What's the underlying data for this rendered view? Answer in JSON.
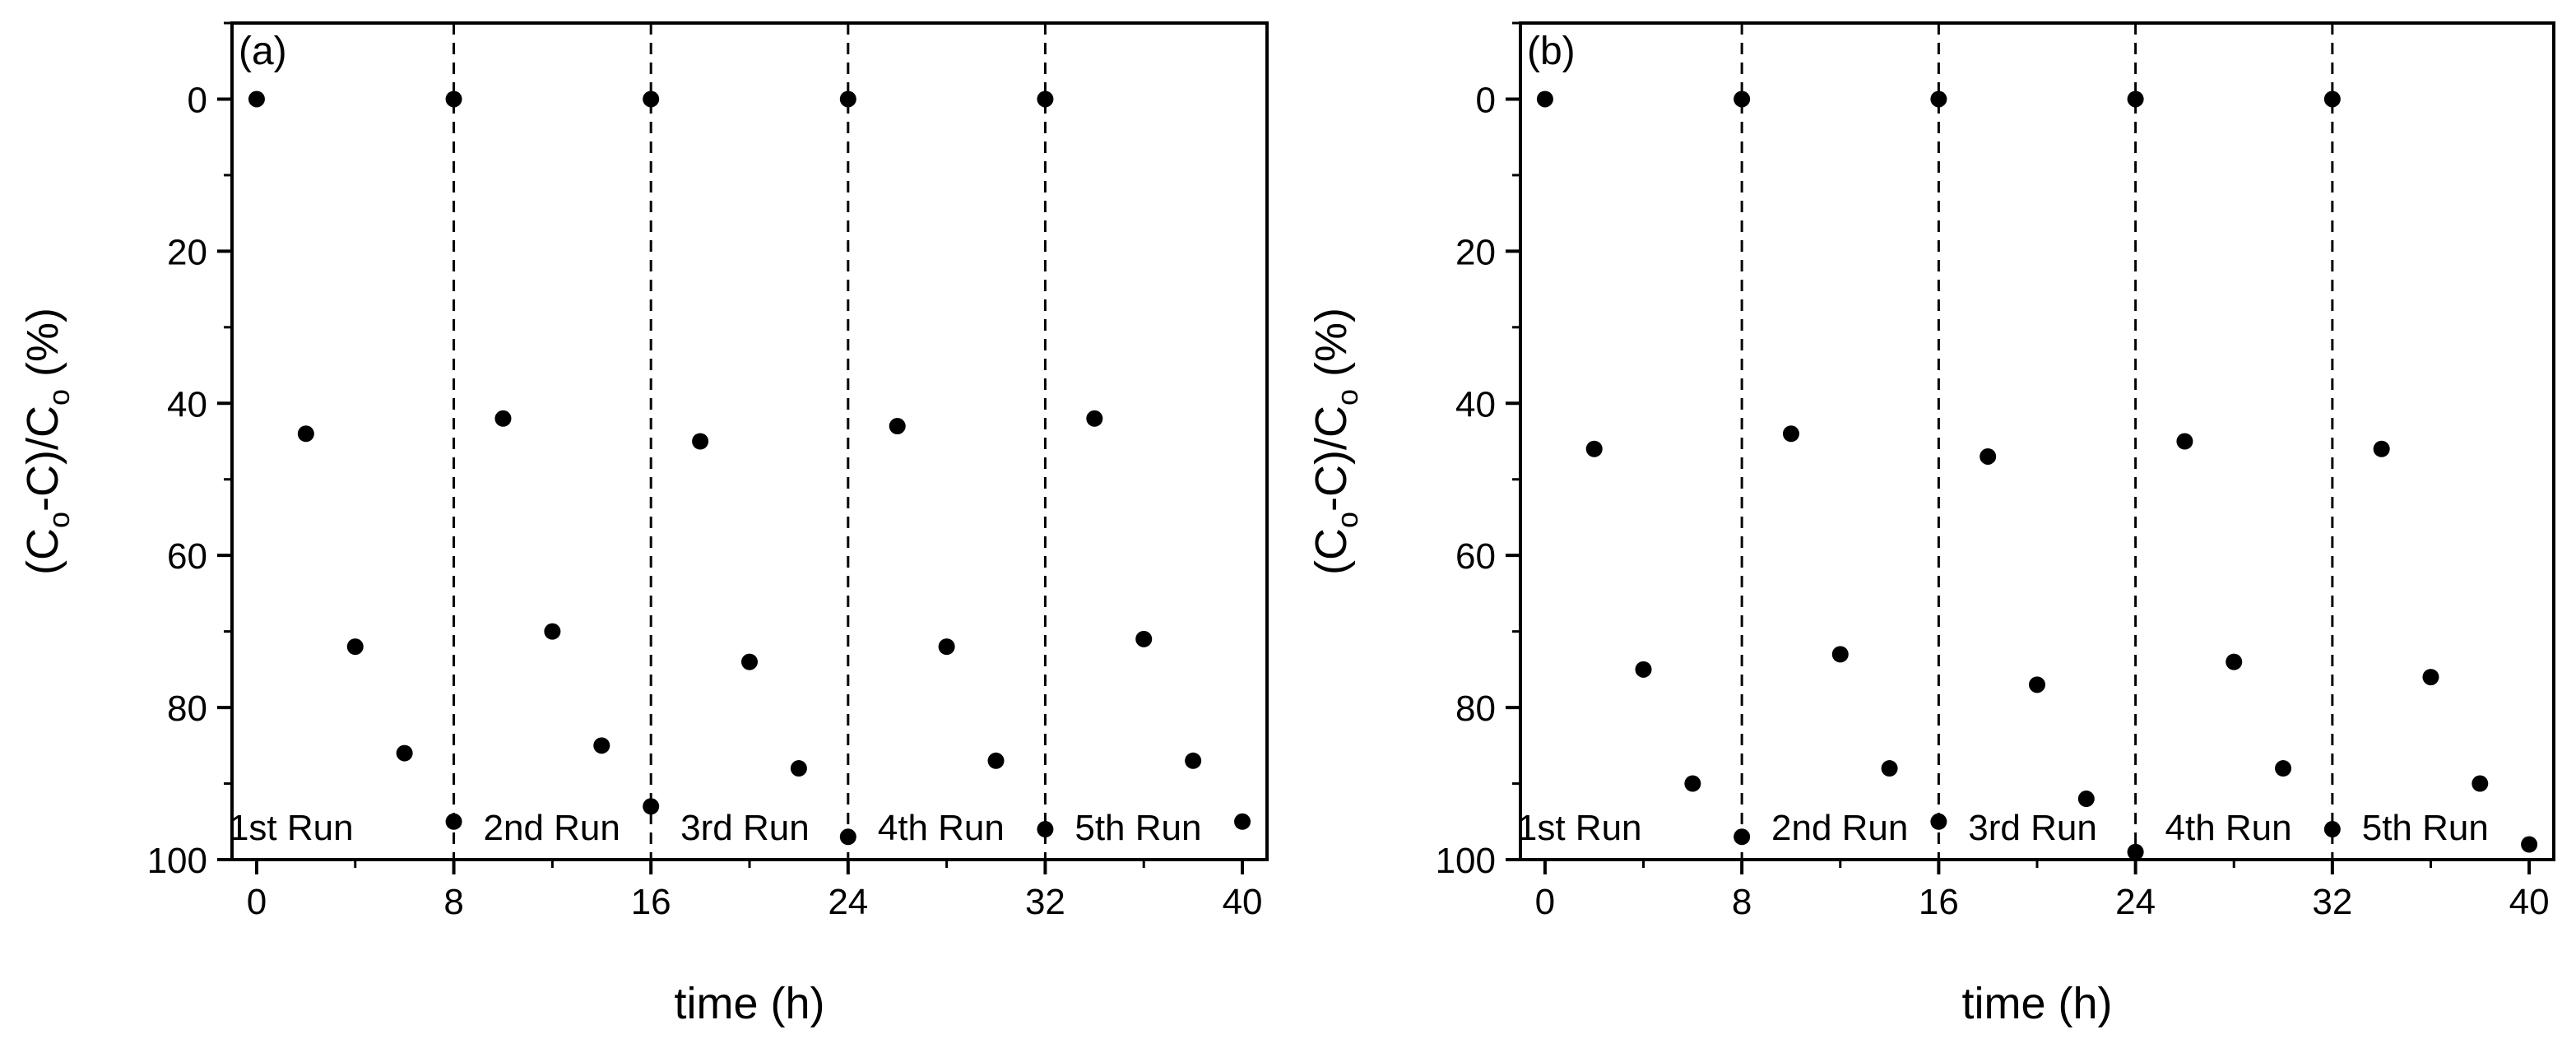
{
  "chart_data": [
    {
      "type": "scatter",
      "panel_label": "(a)",
      "xlabel": "time (h)",
      "ylabel_parts": [
        "(C",
        "o",
        "-C)/C",
        "o",
        " (%)"
      ],
      "xlim": [
        -1,
        41
      ],
      "ylim": [
        -10,
        100
      ],
      "y_axis_inverted": true,
      "xticks": [
        0,
        8,
        16,
        24,
        32,
        40
      ],
      "xtick_labels": [
        "0",
        "8",
        "16",
        "24",
        "32",
        "40"
      ],
      "yticks": [
        0,
        20,
        40,
        60,
        80,
        100
      ],
      "ytick_labels": [
        "0",
        "20",
        "40",
        "60",
        "80",
        "100"
      ],
      "run_separators": [
        8,
        16,
        24,
        32
      ],
      "run_labels": [
        "1st Run",
        "2nd Run",
        "3rd Run",
        "4th Run",
        "5th Run"
      ],
      "marker_color": "#000000",
      "x": [
        0,
        2,
        4,
        6,
        8,
        8,
        10,
        12,
        14,
        16,
        16,
        18,
        20,
        22,
        24,
        24,
        26,
        28,
        30,
        32,
        32,
        34,
        36,
        38,
        40
      ],
      "y": [
        0,
        44,
        72,
        86,
        95,
        0,
        42,
        70,
        85,
        93,
        0,
        45,
        74,
        88,
        97,
        0,
        43,
        72,
        87,
        96,
        0,
        42,
        71,
        87,
        95
      ]
    },
    {
      "type": "scatter",
      "panel_label": "(b)",
      "xlabel": "time (h)",
      "ylabel_parts": [
        "(C",
        "o",
        "-C)/C",
        "o",
        " (%)"
      ],
      "xlim": [
        -1,
        41
      ],
      "ylim": [
        -10,
        100
      ],
      "y_axis_inverted": true,
      "xticks": [
        0,
        8,
        16,
        24,
        32,
        40
      ],
      "xtick_labels": [
        "0",
        "8",
        "16",
        "24",
        "32",
        "40"
      ],
      "yticks": [
        0,
        20,
        40,
        60,
        80,
        100
      ],
      "ytick_labels": [
        "0",
        "20",
        "40",
        "60",
        "80",
        "100"
      ],
      "run_separators": [
        8,
        16,
        24,
        32
      ],
      "run_labels": [
        "1st Run",
        "2nd Run",
        "3rd Run",
        "4th Run",
        "5th Run"
      ],
      "marker_color": "#000000",
      "x": [
        0,
        2,
        4,
        6,
        8,
        8,
        10,
        12,
        14,
        16,
        16,
        18,
        20,
        22,
        24,
        24,
        26,
        28,
        30,
        32,
        32,
        34,
        36,
        38,
        40
      ],
      "y": [
        0,
        46,
        75,
        90,
        97,
        0,
        44,
        73,
        88,
        95,
        0,
        47,
        77,
        92,
        99,
        0,
        45,
        74,
        88,
        96,
        0,
        46,
        76,
        90,
        98
      ]
    }
  ]
}
